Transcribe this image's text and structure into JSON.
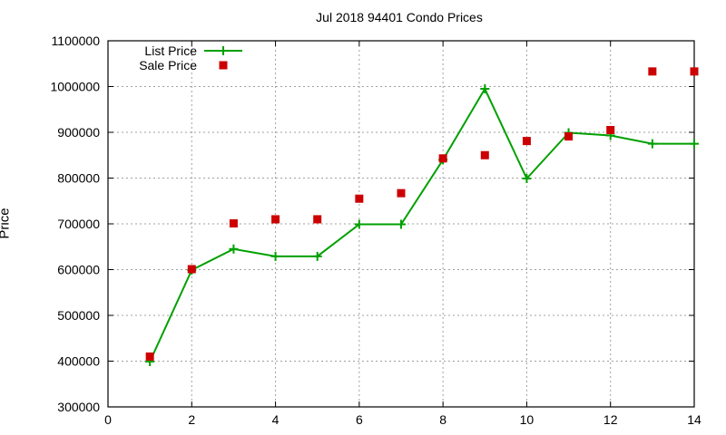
{
  "chart_data": {
    "type": "line",
    "title": "Jul 2018 94401 Condo Prices",
    "xlabel": "",
    "ylabel": "Price",
    "xlim": [
      0,
      14
    ],
    "ylim": [
      300000,
      1100000
    ],
    "xticks": [
      0,
      2,
      4,
      6,
      8,
      10,
      12,
      14
    ],
    "yticks": [
      300000,
      400000,
      500000,
      600000,
      700000,
      800000,
      900000,
      1000000,
      1100000
    ],
    "grid": true,
    "legend_position": "top-left",
    "x": [
      1,
      2,
      3,
      4,
      5,
      6,
      7,
      8,
      9,
      10,
      11,
      12,
      13,
      14
    ],
    "series": [
      {
        "name": "List Price",
        "style": "line+cross",
        "color": "#00a000",
        "values": [
          399000,
          599000,
          645000,
          629000,
          629000,
          699000,
          699000,
          840000,
          995000,
          799000,
          899000,
          893000,
          875000,
          875000
        ]
      },
      {
        "name": "Sale Price",
        "style": "square",
        "color": "#cc0000",
        "values": [
          410000,
          601000,
          701000,
          710000,
          710000,
          755000,
          767000,
          843000,
          850000,
          881000,
          891000,
          905000,
          1033000,
          1033000
        ]
      }
    ]
  }
}
